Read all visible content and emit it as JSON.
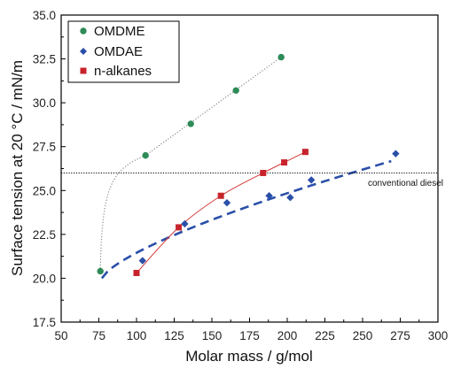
{
  "chart_data": {
    "type": "scatter",
    "xlabel": "Molar mass  / g/mol",
    "ylabel": "Surface tension at 20 °C  / mN/m",
    "xlim": [
      50,
      300
    ],
    "ylim": [
      17.5,
      35.0
    ],
    "x_ticks": [
      "50",
      "75",
      "100",
      "125",
      "150",
      "175",
      "200",
      "225",
      "250",
      "275",
      "300"
    ],
    "y_ticks": [
      "17.5",
      "20.0",
      "22.5",
      "25.0",
      "27.5",
      "30.0",
      "32.5",
      "35.0"
    ],
    "grid": false,
    "legend_position": "top-left",
    "series": [
      {
        "name": "OMDME",
        "marker": "circle",
        "color": "#2e8b57",
        "x": [
          76,
          106,
          136,
          166,
          196
        ],
        "y": [
          20.4,
          27.0,
          28.8,
          30.7,
          32.6
        ],
        "fit": "dotted",
        "fit_color": "#8a8a8a"
      },
      {
        "name": "OMDAE",
        "marker": "diamond",
        "color": "#2a4fa8",
        "x": [
          104,
          132,
          160,
          188,
          202,
          216,
          272
        ],
        "y": [
          21.0,
          23.1,
          24.3,
          24.7,
          24.6,
          25.6,
          27.1
        ],
        "fit": "dashed",
        "fit_color": "#2a4fa8"
      },
      {
        "name": "n-alkanes",
        "marker": "square",
        "color": "#c8232c",
        "x": [
          100,
          128,
          156,
          184,
          198,
          212
        ],
        "y": [
          20.3,
          22.9,
          24.7,
          26.0,
          26.6,
          27.2
        ],
        "fit": "solid",
        "fit_color": "#d43a3a"
      }
    ],
    "annotations": [
      {
        "text": "conventional diesel",
        "type": "hline",
        "y": 26.0
      }
    ]
  }
}
